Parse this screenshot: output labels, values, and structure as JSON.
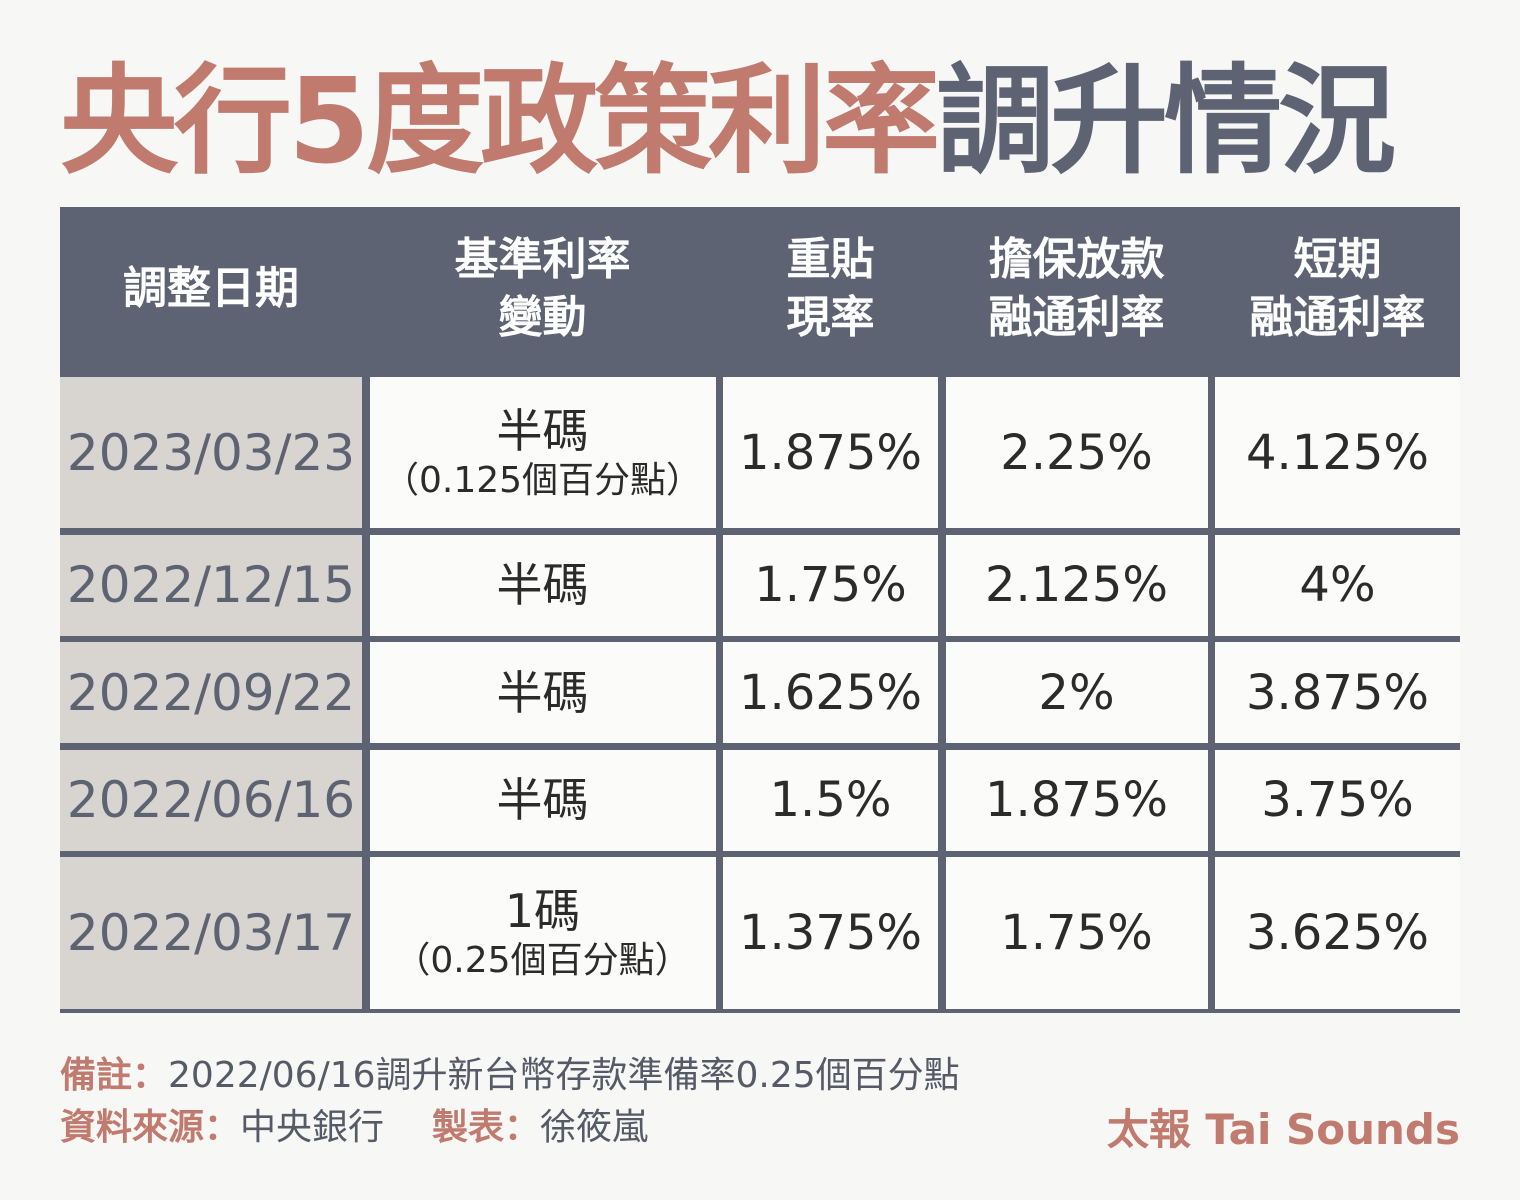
{
  "title": {
    "accent": "央行5度政策利率",
    "rest": "調升情況"
  },
  "colors": {
    "accent": "#c07a6e",
    "header_bg": "#5d6372",
    "date_bg": "#d8d4d0",
    "cell_bg": "#fbfbfa"
  },
  "table": {
    "headers": [
      {
        "line1": "調整日期",
        "line2": ""
      },
      {
        "line1": "基準利率",
        "line2": "變動"
      },
      {
        "line1": "重貼",
        "line2": "現率"
      },
      {
        "line1": "擔保放款",
        "line2": "融通利率"
      },
      {
        "line1": "短期",
        "line2": "融通利率"
      }
    ],
    "rows": [
      {
        "date": "2023/03/23",
        "change": "半碼",
        "change_note": "（0.125個百分點）",
        "rediscount": "1.875%",
        "secured": "2.25%",
        "short_term": "4.125%"
      },
      {
        "date": "2022/12/15",
        "change": "半碼",
        "change_note": "",
        "rediscount": "1.75%",
        "secured": "2.125%",
        "short_term": "4%"
      },
      {
        "date": "2022/09/22",
        "change": "半碼",
        "change_note": "",
        "rediscount": "1.625%",
        "secured": "2%",
        "short_term": "3.875%"
      },
      {
        "date": "2022/06/16",
        "change": "半碼",
        "change_note": "",
        "rediscount": "1.5%",
        "secured": "1.875%",
        "short_term": "3.75%"
      },
      {
        "date": "2022/03/17",
        "change": "1碼",
        "change_note": "（0.25個百分點）",
        "rediscount": "1.375%",
        "secured": "1.75%",
        "short_term": "3.625%"
      }
    ]
  },
  "footer": {
    "note_label": "備註：",
    "note_text": "2022/06/16調升新台幣存款準備率0.25個百分點",
    "source_label": "資料來源：",
    "source_text": "中央銀行",
    "author_label": "製表：",
    "author_text": "徐筱嵐",
    "brand": "太報 Tai Sounds"
  }
}
